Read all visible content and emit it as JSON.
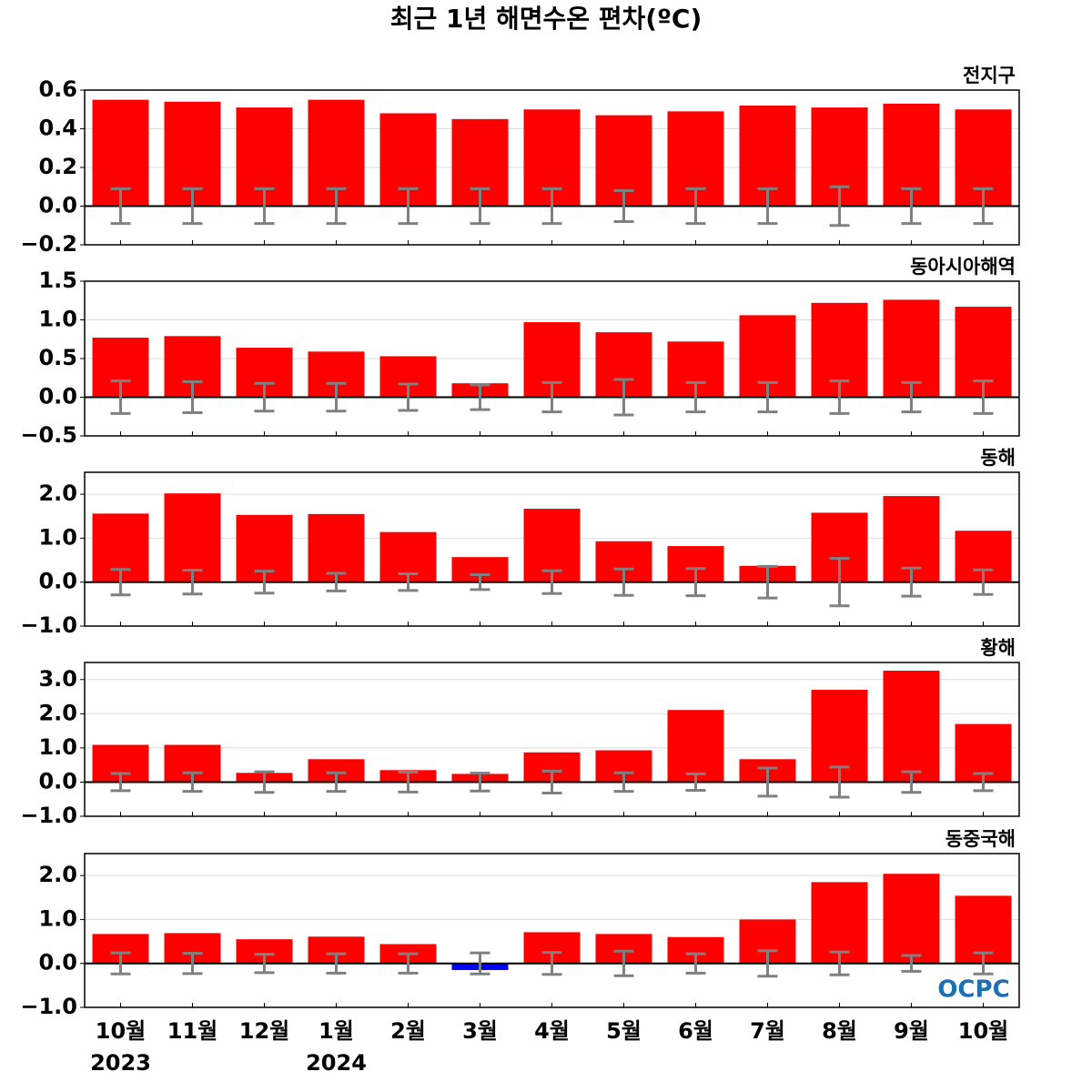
{
  "title": "최근 1년 해면수온 편차(ºC)",
  "logo": "OCPC",
  "chart_data": [
    {
      "type": "bar",
      "subtitle": "전지구",
      "color": "#ff0000",
      "negative_color": "#0000ff",
      "error_color": "#808080",
      "grid": true,
      "ylim": [
        -0.2,
        0.6
      ],
      "yticks": [
        0.6,
        0.4,
        0.2,
        {
          "value": 0,
          "label": "0.0"
        },
        {
          "value": -0.2,
          "label": "−0.2"
        }
      ],
      "values": [
        0.55,
        0.54,
        0.51,
        0.55,
        0.48,
        0.45,
        0.5,
        0.47,
        0.49,
        0.52,
        0.51,
        0.53,
        0.5
      ],
      "errors": [
        0.09,
        0.09,
        0.09,
        0.09,
        0.09,
        0.09,
        0.09,
        0.08,
        0.09,
        0.09,
        0.1,
        0.09,
        0.09
      ]
    },
    {
      "type": "bar",
      "subtitle": "동아시아해역",
      "color": "#ff0000",
      "negative_color": "#0000ff",
      "error_color": "#808080",
      "grid": true,
      "ylim": [
        -0.5,
        1.5
      ],
      "yticks": [
        1.5,
        {
          "value": 1,
          "label": "1.0"
        },
        0.5,
        {
          "value": 0,
          "label": "0.0"
        },
        {
          "value": -0.5,
          "label": "−0.5"
        }
      ],
      "values": [
        0.77,
        0.79,
        0.64,
        0.59,
        0.53,
        0.18,
        0.97,
        0.84,
        0.72,
        1.06,
        1.22,
        1.26,
        1.17
      ],
      "errors": [
        0.21,
        0.2,
        0.18,
        0.18,
        0.17,
        0.16,
        0.19,
        0.23,
        0.19,
        0.19,
        0.21,
        0.19,
        0.21
      ]
    },
    {
      "type": "bar",
      "subtitle": "동해",
      "color": "#ff0000",
      "negative_color": "#0000ff",
      "error_color": "#808080",
      "grid": true,
      "ylim": [
        -1,
        2.5
      ],
      "yticks": [
        {
          "value": 2,
          "label": "2.0"
        },
        {
          "value": 1,
          "label": "1.0"
        },
        {
          "value": 0,
          "label": "0.0"
        },
        {
          "value": -1,
          "label": "−1.0"
        }
      ],
      "values": [
        1.56,
        2.02,
        1.53,
        1.55,
        1.14,
        0.57,
        1.67,
        0.93,
        0.82,
        0.37,
        1.58,
        1.96,
        1.17
      ],
      "errors": [
        0.29,
        0.27,
        0.25,
        0.2,
        0.19,
        0.17,
        0.26,
        0.3,
        0.31,
        0.36,
        0.54,
        0.32,
        0.28
      ]
    },
    {
      "type": "bar",
      "subtitle": "황해",
      "color": "#ff0000",
      "negative_color": "#0000ff",
      "error_color": "#808080",
      "grid": true,
      "ylim": [
        -1,
        3.5
      ],
      "yticks": [
        {
          "value": 3,
          "label": "3.0"
        },
        {
          "value": 2,
          "label": "2.0"
        },
        {
          "value": 1,
          "label": "1.0"
        },
        {
          "value": 0,
          "label": "0.0"
        },
        {
          "value": -1,
          "label": "−1.0"
        }
      ],
      "values": [
        1.09,
        1.09,
        0.27,
        0.67,
        0.35,
        0.24,
        0.87,
        0.93,
        2.11,
        0.67,
        2.7,
        3.26,
        1.7
      ],
      "errors": [
        0.25,
        0.27,
        0.3,
        0.27,
        0.29,
        0.26,
        0.32,
        0.27,
        0.24,
        0.41,
        0.44,
        0.3,
        0.25
      ]
    },
    {
      "type": "bar",
      "subtitle": "동중국해",
      "color": "#ff0000",
      "negative_color": "#0000ff",
      "error_color": "#808080",
      "grid": true,
      "ylim": [
        -1,
        2.5
      ],
      "yticks": [
        {
          "value": 2,
          "label": "2.0"
        },
        {
          "value": 1,
          "label": "1.0"
        },
        {
          "value": 0,
          "label": "0.0"
        },
        {
          "value": -1,
          "label": "−1.0"
        }
      ],
      "categories": [
        "10월",
        "11월",
        "12월",
        "1월",
        "2월",
        "3월",
        "4월",
        "5월",
        "6월",
        "7월",
        "8월",
        "9월",
        "10월"
      ],
      "x_sublabels": [
        "2023",
        null,
        null,
        "2024",
        null,
        null,
        null,
        null,
        null,
        null,
        null,
        null,
        null
      ],
      "values": [
        0.67,
        0.69,
        0.55,
        0.61,
        0.44,
        -0.15,
        0.71,
        0.67,
        0.6,
        1.0,
        1.85,
        2.04,
        1.54
      ],
      "errors": [
        0.24,
        0.23,
        0.21,
        0.22,
        0.22,
        0.24,
        0.25,
        0.28,
        0.22,
        0.29,
        0.26,
        0.18,
        0.24
      ]
    }
  ]
}
